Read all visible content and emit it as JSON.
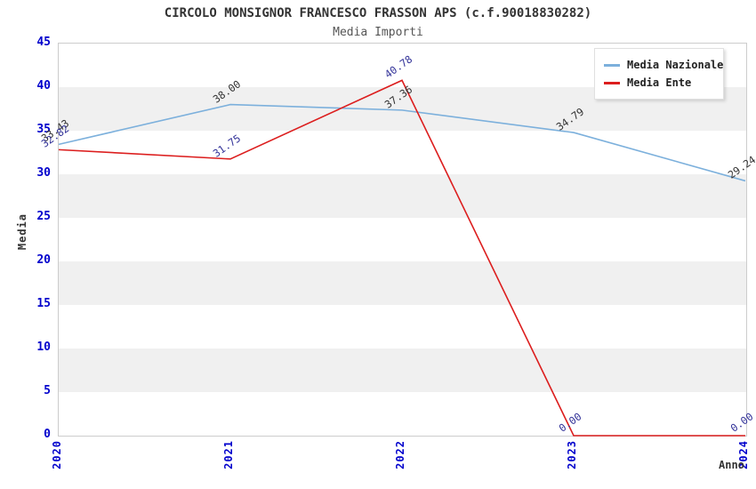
{
  "header": {
    "title": "CIRCOLO MONSIGNOR FRANCESCO FRASSON APS (c.f.90018830282)",
    "subtitle": "Media Importi"
  },
  "colors": {
    "tick_blue": "#0000cc",
    "band_gray": "#f0f0f0",
    "plot_border": "#cccccc",
    "title_text": "#333333"
  },
  "chart_data": {
    "type": "line",
    "x": [
      2020,
      2021,
      2022,
      2023,
      2024
    ],
    "series": [
      {
        "name": "Media Nazionale",
        "color": "#7cb0dc",
        "label_color": "#333333",
        "values": [
          33.43,
          38.0,
          37.36,
          34.79,
          29.24
        ]
      },
      {
        "name": "Media Ente",
        "color": "#dc1e1e",
        "label_color": "#333399",
        "values": [
          32.82,
          31.75,
          40.78,
          0.0,
          0.0
        ]
      }
    ],
    "title": "Media Importi",
    "xlabel": "Anno",
    "ylabel": "Media",
    "ylim": [
      0,
      45
    ],
    "ytick_step": 5,
    "grid": "horizontal-bands",
    "legend_position": "top-right",
    "data_label_format": "two-decimals"
  }
}
